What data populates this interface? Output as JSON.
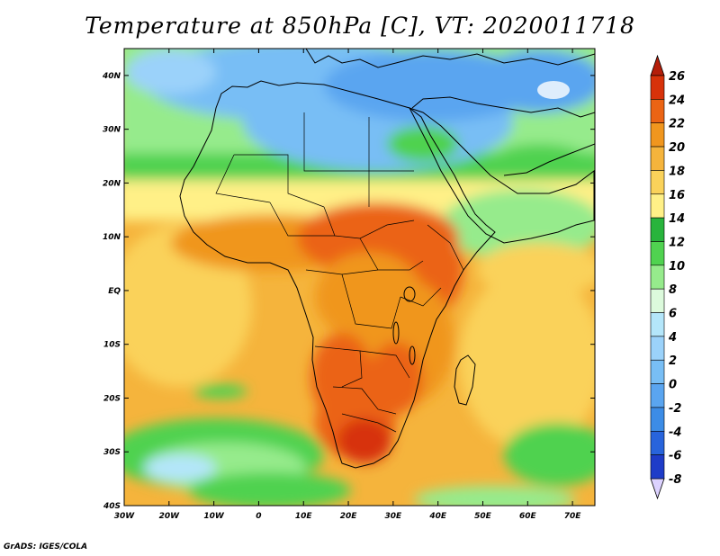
{
  "title": "Temperature at 850hPa [C], VT: 2020011718",
  "credit": "GrADS: IGES/COLA",
  "map": {
    "lon_range": [
      -30,
      75
    ],
    "lat_range": [
      -40,
      45
    ],
    "x_ticks": [
      {
        "lon": -30,
        "label": "30W"
      },
      {
        "lon": -20,
        "label": "20W"
      },
      {
        "lon": -10,
        "label": "10W"
      },
      {
        "lon": 0,
        "label": "0"
      },
      {
        "lon": 10,
        "label": "10E"
      },
      {
        "lon": 20,
        "label": "20E"
      },
      {
        "lon": 30,
        "label": "30E"
      },
      {
        "lon": 40,
        "label": "40E"
      },
      {
        "lon": 50,
        "label": "50E"
      },
      {
        "lon": 60,
        "label": "60E"
      },
      {
        "lon": 70,
        "label": "70E"
      }
    ],
    "y_ticks": [
      {
        "lat": 40,
        "label": "40N"
      },
      {
        "lat": 30,
        "label": "30N"
      },
      {
        "lat": 20,
        "label": "20N"
      },
      {
        "lat": 10,
        "label": "10N"
      },
      {
        "lat": 0,
        "label": "EQ"
      },
      {
        "lat": -10,
        "label": "10S"
      },
      {
        "lat": -20,
        "label": "20S"
      },
      {
        "lat": -30,
        "label": "30S"
      },
      {
        "lat": -40,
        "label": "40S"
      }
    ]
  },
  "colorbar": {
    "units": "C",
    "levels": [
      {
        "value": -8,
        "label": "-8",
        "color": "#0a1e96"
      },
      {
        "value": -6,
        "label": "-6",
        "color": "#1e3cc8"
      },
      {
        "value": -4,
        "label": "-4",
        "color": "#2864dc"
      },
      {
        "value": -2,
        "label": "-2",
        "color": "#3c8ce6"
      },
      {
        "value": 0,
        "label": "0",
        "color": "#5aa5f0"
      },
      {
        "value": 2,
        "label": "2",
        "color": "#78bef5"
      },
      {
        "value": 4,
        "label": "4",
        "color": "#9bd2fa"
      },
      {
        "value": 6,
        "label": "6",
        "color": "#b4e6fa"
      },
      {
        "value": 8,
        "label": "8",
        "color": "#dcfadc"
      },
      {
        "value": 10,
        "label": "10",
        "color": "#96eb8c"
      },
      {
        "value": 12,
        "label": "12",
        "color": "#50d250"
      },
      {
        "value": 14,
        "label": "14",
        "color": "#28b43c"
      },
      {
        "value": 16,
        "label": "16",
        "color": "#fff087"
      },
      {
        "value": 18,
        "label": "18",
        "color": "#fad25a"
      },
      {
        "value": 20,
        "label": "20",
        "color": "#f5b43c"
      },
      {
        "value": 22,
        "label": "22",
        "color": "#f0961e"
      },
      {
        "value": 24,
        "label": "24",
        "color": "#eb6414"
      },
      {
        "value": 26,
        "label": "26",
        "color": "#d7320a"
      }
    ],
    "below_color": "#dcd2ff",
    "above_color": "#b41e0a"
  }
}
